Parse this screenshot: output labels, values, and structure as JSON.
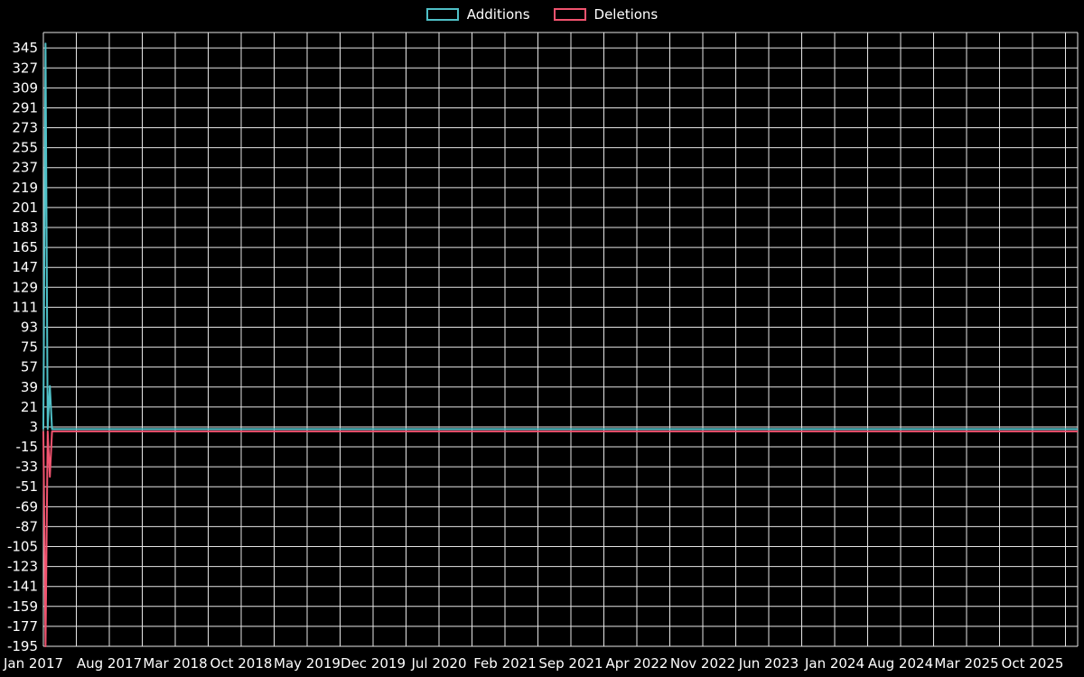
{
  "legend": {
    "additions": "Additions",
    "deletions": "Deletions"
  },
  "colors": {
    "background": "#000000",
    "grid": "#e6e6e6",
    "text": "#ffffff",
    "additions": "#4fc0c7",
    "deletions": "#f1536f"
  },
  "chart_data": {
    "type": "line",
    "title": "",
    "xlabel": "",
    "ylabel": "",
    "grid": true,
    "legend_position": "top-center",
    "x_tick_labels": [
      "Jan 2017",
      "Aug 2017",
      "Mar 2018",
      "Oct 2018",
      "May 2019",
      "Dec 2019",
      "Jul 2020",
      "Feb 2021",
      "Sep 2021",
      "Apr 2022",
      "Nov 2022",
      "Jun 2023",
      "Jan 2024",
      "Aug 2024",
      "Mar 2025",
      "Oct 2025"
    ],
    "y_tick_values": [
      345,
      327,
      309,
      291,
      273,
      255,
      237,
      219,
      201,
      183,
      165,
      147,
      129,
      111,
      93,
      75,
      57,
      39,
      21,
      3,
      -15,
      -33,
      -51,
      -69,
      -87,
      -105,
      -123,
      -141,
      -159,
      -177,
      -195
    ],
    "ylim": [
      -195,
      359
    ],
    "x_range_weeks": [
      0,
      477
    ],
    "series": [
      {
        "name": "Additions",
        "color": "#4fc0c7",
        "points": [
          [
            0,
            1
          ],
          [
            1,
            349
          ],
          [
            2,
            1
          ],
          [
            3,
            40
          ],
          [
            4,
            1
          ],
          [
            477,
            1
          ]
        ]
      },
      {
        "name": "Deletions",
        "color": "#f1536f",
        "points": [
          [
            0,
            -1
          ],
          [
            1,
            -195
          ],
          [
            2,
            -1
          ],
          [
            3,
            -42
          ],
          [
            4,
            -1
          ],
          [
            477,
            -1
          ]
        ]
      }
    ]
  }
}
